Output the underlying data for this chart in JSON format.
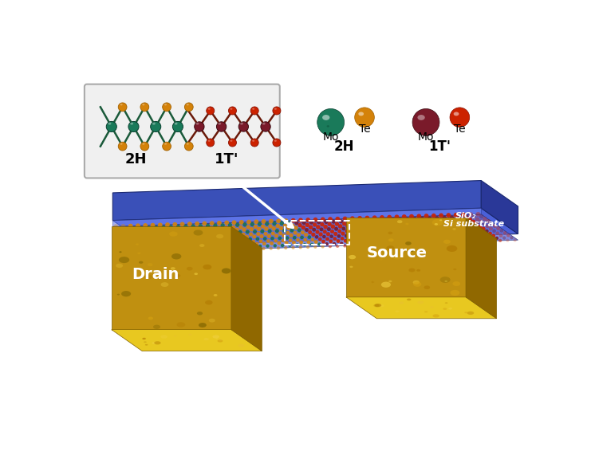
{
  "bg_color": "#ffffff",
  "sio2_label": "SiO₂",
  "si_label": "Si substrate",
  "drain_label": "Drain",
  "source_label": "Source",
  "phase_2h_label": "2H",
  "phase_1t_label": "1T'",
  "mo_2h_color": "#1a7a5a",
  "te_2h_color": "#d4820a",
  "mo_1t_color": "#7a1a2a",
  "te_1t_color": "#cc2200",
  "bond_color_2h": "#1a5a3a",
  "bond_color_1t": "#6a1a0a",
  "inset_bg": "#f0f0f0",
  "inset_border": "#aaaaaa",
  "substrate_top_color": "#4a60d8",
  "substrate_front_color": "#3a50b8",
  "substrate_side_color": "#2a3898",
  "gold_front": "#c8960a",
  "gold_top": "#e8c820",
  "gold_right": "#a07000",
  "dot_te_2h": "#d4820a",
  "dot_mo_2h": "#1a7050",
  "dot_te_1t": "#cc2200",
  "dot_mo_1t": "#7a1a2a"
}
